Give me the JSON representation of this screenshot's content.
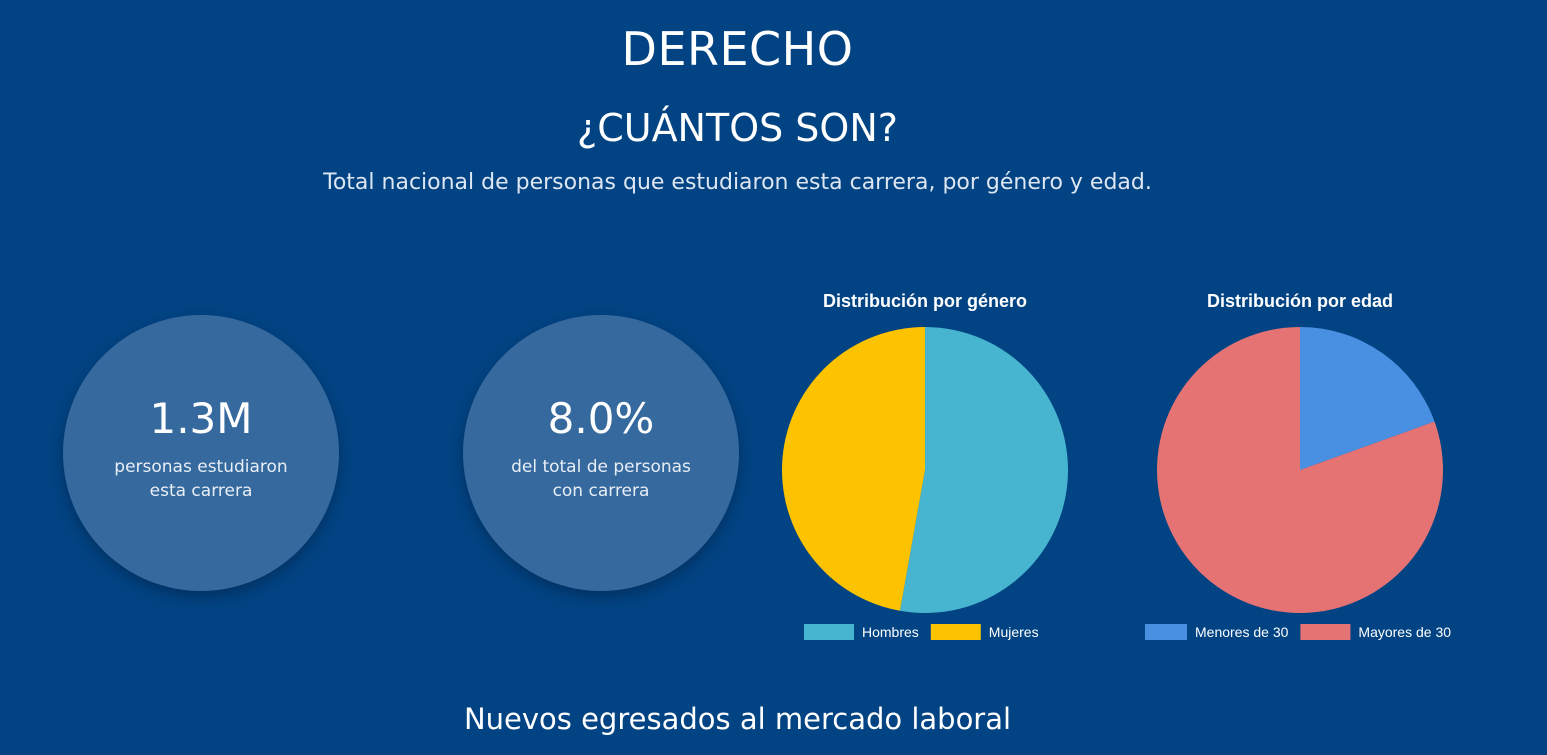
{
  "header": {
    "title": "DERECHO",
    "subtitle": "¿CUÁNTOS SON?",
    "description": "Total nacional de personas que estudiaron esta carrera, por género y edad."
  },
  "stats": [
    {
      "value": "1.3M",
      "label_line1": "personas estudiaron",
      "label_line2": "esta carrera"
    },
    {
      "value": "8.0%",
      "label_line1": "del total de personas",
      "label_line2": "con carrera"
    }
  ],
  "footer": {
    "title": "Nuevos egresados al mercado laboral"
  },
  "chart_data": [
    {
      "type": "pie",
      "title": "Distribución por género",
      "categories": [
        "Hombres",
        "Mujeres"
      ],
      "values": [
        52.8,
        47.2
      ],
      "colors": [
        "#47b5d0",
        "#fdc300"
      ],
      "legend_position": "bottom"
    },
    {
      "type": "pie",
      "title": "Distribución por edad",
      "categories": [
        "Menores de 30",
        "Mayores de 30"
      ],
      "values": [
        19.5,
        80.5
      ],
      "colors": [
        "#4a90e2",
        "#e57373"
      ],
      "legend_position": "bottom"
    }
  ]
}
